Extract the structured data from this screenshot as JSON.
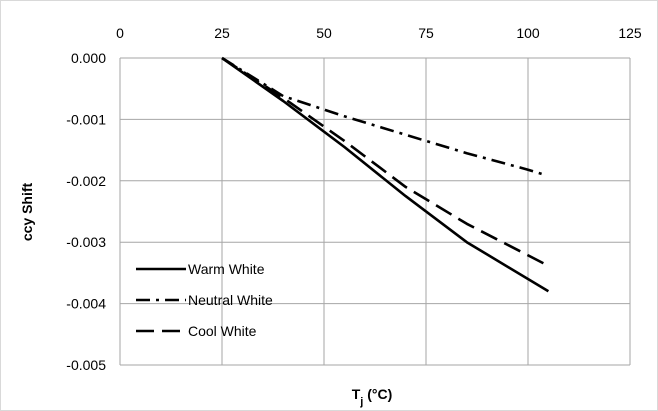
{
  "chart_data": {
    "type": "line",
    "title": "",
    "xlabel": "T",
    "xlabel_sub": "j",
    "xlabel_unit": " (°C)",
    "ylabel": "ccy Shift",
    "xlim": [
      0,
      125
    ],
    "ylim": [
      -0.005,
      0
    ],
    "x_ticks": [
      0,
      25,
      50,
      75,
      100,
      125
    ],
    "x_tick_labels": [
      "0",
      "25",
      "50",
      "75",
      "100",
      "125"
    ],
    "x_tick_position": "top",
    "y_ticks": [
      0,
      -0.001,
      -0.002,
      -0.003,
      -0.004,
      -0.005
    ],
    "y_tick_labels": [
      "0.000",
      "-0.001",
      "-0.002",
      "-0.003",
      "-0.004",
      "-0.005"
    ],
    "grid": true,
    "legend_position": "bottom-left",
    "series": [
      {
        "name": "Warm White",
        "dash": "solid",
        "color": "#000000",
        "x": [
          25,
          40,
          55,
          70,
          85,
          105
        ],
        "y": [
          0,
          -0.0007,
          -0.00145,
          -0.00225,
          -0.003,
          -0.0038
        ]
      },
      {
        "name": "Neutral White",
        "dash": "dash-dot",
        "color": "#000000",
        "x": [
          25,
          40,
          55,
          70,
          85,
          100,
          104
        ],
        "y": [
          0,
          -0.00062,
          -0.00095,
          -0.00125,
          -0.00155,
          -0.00182,
          -0.0019
        ]
      },
      {
        "name": "Cool White",
        "dash": "long-dash",
        "color": "#000000",
        "x": [
          25,
          40,
          55,
          70,
          85,
          104
        ],
        "y": [
          0,
          -0.00065,
          -0.00135,
          -0.0021,
          -0.0027,
          -0.00335
        ]
      }
    ]
  }
}
